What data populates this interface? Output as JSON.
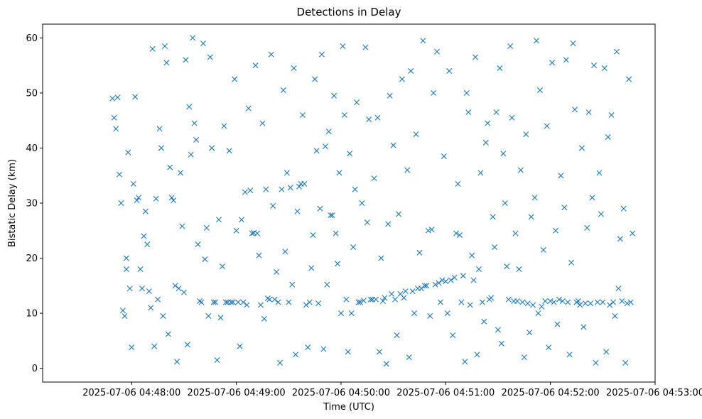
{
  "chart_data": {
    "type": "scatter",
    "title": "Detections in Delay",
    "xlabel": "Time (UTC)",
    "ylabel": "Bistatic Delay (km)",
    "xlim_seconds": [
      -51,
      300
    ],
    "ylim": [
      -2.5,
      62.5
    ],
    "x_ticks": [
      {
        "seconds": 0,
        "label": "2025-07-06 04:48:00"
      },
      {
        "seconds": 60,
        "label": "2025-07-06 04:49:00"
      },
      {
        "seconds": 120,
        "label": "2025-07-06 04:50:00"
      },
      {
        "seconds": 180,
        "label": "2025-07-06 04:51:00"
      },
      {
        "seconds": 240,
        "label": "2025-07-06 04:52:00"
      },
      {
        "seconds": 300,
        "label": "2025-07-06 04:53:00"
      }
    ],
    "y_ticks": [
      0,
      10,
      20,
      30,
      40,
      50,
      60
    ],
    "marker": "x",
    "marker_color": "#1f77b4",
    "x_origin": "2025-07-06 04:48:00",
    "series": [
      {
        "name": "detections",
        "points": [
          [
            -11,
            49
          ],
          [
            -10,
            45.5
          ],
          [
            -9,
            43.5
          ],
          [
            -8,
            49.2
          ],
          [
            -7,
            35.2
          ],
          [
            -6,
            30
          ],
          [
            -5,
            10.5
          ],
          [
            -4,
            9.5
          ],
          [
            -3,
            20
          ],
          [
            -3,
            18
          ],
          [
            -2,
            39.2
          ],
          [
            -1,
            14.5
          ],
          [
            0,
            3.8
          ],
          [
            1,
            33.5
          ],
          [
            2,
            49.3
          ],
          [
            3,
            30.5
          ],
          [
            4,
            31
          ],
          [
            5,
            18
          ],
          [
            6,
            14.5
          ],
          [
            7,
            24
          ],
          [
            8,
            28.5
          ],
          [
            9,
            22.5
          ],
          [
            10,
            14
          ],
          [
            11,
            11
          ],
          [
            12,
            58
          ],
          [
            13,
            4
          ],
          [
            14,
            30.8
          ],
          [
            15,
            12.5
          ],
          [
            16,
            43.5
          ],
          [
            17,
            40
          ],
          [
            18,
            9.5
          ],
          [
            19,
            58.5
          ],
          [
            20,
            55.5
          ],
          [
            21,
            6.2
          ],
          [
            22,
            36.5
          ],
          [
            23,
            31
          ],
          [
            24,
            30.5
          ],
          [
            25,
            15
          ],
          [
            26,
            1.2
          ],
          [
            27,
            14.5
          ],
          [
            28,
            35.5
          ],
          [
            29,
            25.8
          ],
          [
            30,
            13.8
          ],
          [
            31,
            56
          ],
          [
            32,
            4.3
          ],
          [
            33,
            47.5
          ],
          [
            34,
            38.8
          ],
          [
            35,
            60
          ],
          [
            36,
            44.5
          ],
          [
            37,
            41.5
          ],
          [
            38,
            22.5
          ],
          [
            39,
            12.2
          ],
          [
            40,
            12
          ],
          [
            41,
            59
          ],
          [
            42,
            19.8
          ],
          [
            43,
            25.5
          ],
          [
            44,
            9.5
          ],
          [
            45,
            56.5
          ],
          [
            46,
            40
          ],
          [
            47,
            12
          ],
          [
            48,
            12
          ],
          [
            49,
            1.5
          ],
          [
            50,
            27
          ],
          [
            51,
            9.2
          ],
          [
            52,
            18.5
          ],
          [
            53,
            44
          ],
          [
            54,
            12
          ],
          [
            55,
            12
          ],
          [
            56,
            39.5
          ],
          [
            57,
            12
          ],
          [
            58,
            12
          ],
          [
            59,
            52.5
          ],
          [
            60,
            25
          ],
          [
            61,
            12
          ],
          [
            62,
            4
          ],
          [
            63,
            27
          ],
          [
            64,
            12
          ],
          [
            65,
            32
          ],
          [
            66,
            11.5
          ],
          [
            67,
            47.2
          ],
          [
            68,
            32.3
          ],
          [
            69,
            24.5
          ],
          [
            70,
            24.6
          ],
          [
            71,
            55
          ],
          [
            72,
            24.5
          ],
          [
            73,
            20.5
          ],
          [
            74,
            11.5
          ],
          [
            75,
            44.5
          ],
          [
            76,
            9
          ],
          [
            77,
            32.5
          ],
          [
            78,
            12.7
          ],
          [
            79,
            12.5
          ],
          [
            80,
            57
          ],
          [
            81,
            29.5
          ],
          [
            82,
            12.5
          ],
          [
            83,
            17.5
          ],
          [
            84,
            12
          ],
          [
            85,
            1
          ],
          [
            86,
            32.5
          ],
          [
            87,
            50.5
          ],
          [
            88,
            21.2
          ],
          [
            89,
            35.5
          ],
          [
            90,
            12
          ],
          [
            91,
            32.8
          ],
          [
            92,
            15.2
          ],
          [
            93,
            54.5
          ],
          [
            94,
            2.5
          ],
          [
            95,
            28.5
          ],
          [
            96,
            33
          ],
          [
            97,
            33.5
          ],
          [
            98,
            46
          ],
          [
            99,
            33.5
          ],
          [
            100,
            11.5
          ],
          [
            101,
            3.8
          ],
          [
            102,
            12
          ],
          [
            103,
            18.2
          ],
          [
            104,
            24.2
          ],
          [
            105,
            52.5
          ],
          [
            106,
            39.5
          ],
          [
            107,
            11.8
          ],
          [
            108,
            29
          ],
          [
            109,
            57
          ],
          [
            110,
            3.5
          ],
          [
            111,
            40.3
          ],
          [
            112,
            15.2
          ],
          [
            113,
            43
          ],
          [
            114,
            27.8
          ],
          [
            115,
            27.8
          ],
          [
            116,
            49.5
          ],
          [
            117,
            24.5
          ],
          [
            118,
            19
          ],
          [
            119,
            35.5
          ],
          [
            120,
            10
          ],
          [
            121,
            58.5
          ],
          [
            122,
            46
          ],
          [
            123,
            12.5
          ],
          [
            124,
            3
          ],
          [
            125,
            39
          ],
          [
            126,
            10
          ],
          [
            127,
            22
          ],
          [
            128,
            32.5
          ],
          [
            129,
            48.3
          ],
          [
            130,
            12
          ],
          [
            131,
            12
          ],
          [
            132,
            30
          ],
          [
            133,
            12.3
          ],
          [
            134,
            58.3
          ],
          [
            135,
            26.5
          ],
          [
            136,
            45.2
          ],
          [
            137,
            12.5
          ],
          [
            138,
            12.5
          ],
          [
            139,
            34.5
          ],
          [
            140,
            12.5
          ],
          [
            141,
            45.5
          ],
          [
            142,
            3
          ],
          [
            143,
            20
          ],
          [
            144,
            12.2
          ],
          [
            145,
            12.8
          ],
          [
            146,
            0.8
          ],
          [
            147,
            26.2
          ],
          [
            148,
            49.5
          ],
          [
            149,
            13.5
          ],
          [
            150,
            40.5
          ],
          [
            151,
            12.5
          ],
          [
            152,
            6
          ],
          [
            153,
            28
          ],
          [
            154,
            13.5
          ],
          [
            155,
            52.5
          ],
          [
            156,
            12.8
          ],
          [
            157,
            14
          ],
          [
            158,
            36
          ],
          [
            159,
            2
          ],
          [
            160,
            54
          ],
          [
            161,
            14
          ],
          [
            162,
            10
          ],
          [
            163,
            42.5
          ],
          [
            164,
            14.5
          ],
          [
            165,
            21
          ],
          [
            166,
            14.5
          ],
          [
            167,
            59.5
          ],
          [
            168,
            15
          ],
          [
            169,
            15
          ],
          [
            170,
            25
          ],
          [
            171,
            9.5
          ],
          [
            172,
            25.2
          ],
          [
            173,
            50
          ],
          [
            174,
            15.2
          ],
          [
            175,
            57.5
          ],
          [
            176,
            15.5
          ],
          [
            177,
            12
          ],
          [
            178,
            16
          ],
          [
            179,
            38.5
          ],
          [
            180,
            15.8
          ],
          [
            181,
            10
          ],
          [
            182,
            54
          ],
          [
            183,
            16
          ],
          [
            184,
            6
          ],
          [
            185,
            16.5
          ],
          [
            186,
            24.5
          ],
          [
            187,
            33.5
          ],
          [
            188,
            24.2
          ],
          [
            189,
            12
          ],
          [
            190,
            16.8
          ],
          [
            191,
            1.2
          ],
          [
            192,
            50
          ],
          [
            193,
            46.5
          ],
          [
            194,
            11.5
          ],
          [
            195,
            20.5
          ],
          [
            196,
            16
          ],
          [
            197,
            56.5
          ],
          [
            198,
            2.5
          ],
          [
            199,
            18
          ],
          [
            200,
            35.5
          ],
          [
            201,
            12
          ],
          [
            202,
            8.5
          ],
          [
            203,
            41
          ],
          [
            204,
            44.5
          ],
          [
            205,
            12.5
          ],
          [
            206,
            12.8
          ],
          [
            207,
            27.5
          ],
          [
            208,
            22
          ],
          [
            209,
            46.5
          ],
          [
            210,
            7
          ],
          [
            211,
            54.5
          ],
          [
            212,
            4.5
          ],
          [
            213,
            39
          ],
          [
            214,
            30
          ],
          [
            215,
            18.5
          ],
          [
            216,
            12.5
          ],
          [
            217,
            58.5
          ],
          [
            218,
            45.5
          ],
          [
            219,
            12.2
          ],
          [
            220,
            24.5
          ],
          [
            221,
            12.2
          ],
          [
            222,
            18
          ],
          [
            223,
            36
          ],
          [
            224,
            12
          ],
          [
            225,
            2
          ],
          [
            226,
            42.5
          ],
          [
            227,
            11.8
          ],
          [
            228,
            6.5
          ],
          [
            229,
            27.5
          ],
          [
            230,
            11.5
          ],
          [
            231,
            31
          ],
          [
            232,
            59.5
          ],
          [
            233,
            10
          ],
          [
            234,
            50.5
          ],
          [
            235,
            11.2
          ],
          [
            236,
            21.5
          ],
          [
            237,
            12.2
          ],
          [
            238,
            44
          ],
          [
            239,
            3.8
          ],
          [
            240,
            12.2
          ],
          [
            241,
            55.5
          ],
          [
            242,
            12
          ],
          [
            243,
            25
          ],
          [
            244,
            8
          ],
          [
            245,
            12.5
          ],
          [
            246,
            35
          ],
          [
            247,
            12.2
          ],
          [
            248,
            29.2
          ],
          [
            249,
            56
          ],
          [
            250,
            12
          ],
          [
            251,
            2.5
          ],
          [
            252,
            19.2
          ],
          [
            253,
            59
          ],
          [
            254,
            47
          ],
          [
            255,
            12
          ],
          [
            256,
            12.2
          ],
          [
            257,
            11.5
          ],
          [
            258,
            40
          ],
          [
            259,
            7.5
          ],
          [
            260,
            11.8
          ],
          [
            261,
            25.5
          ],
          [
            262,
            46.5
          ],
          [
            263,
            11.8
          ],
          [
            264,
            31
          ],
          [
            265,
            55
          ],
          [
            266,
            1
          ],
          [
            267,
            12
          ],
          [
            268,
            35.5
          ],
          [
            269,
            28
          ],
          [
            270,
            12
          ],
          [
            271,
            54.5
          ],
          [
            272,
            3
          ],
          [
            273,
            42
          ],
          [
            274,
            11.5
          ],
          [
            275,
            46
          ],
          [
            276,
            12
          ],
          [
            277,
            9.5
          ],
          [
            278,
            57.5
          ],
          [
            279,
            14.5
          ],
          [
            280,
            23.5
          ],
          [
            281,
            12.2
          ],
          [
            282,
            29
          ],
          [
            283,
            1
          ],
          [
            284,
            11.8
          ],
          [
            285,
            52.5
          ],
          [
            286,
            12
          ],
          [
            287,
            24.5
          ]
        ]
      }
    ]
  }
}
